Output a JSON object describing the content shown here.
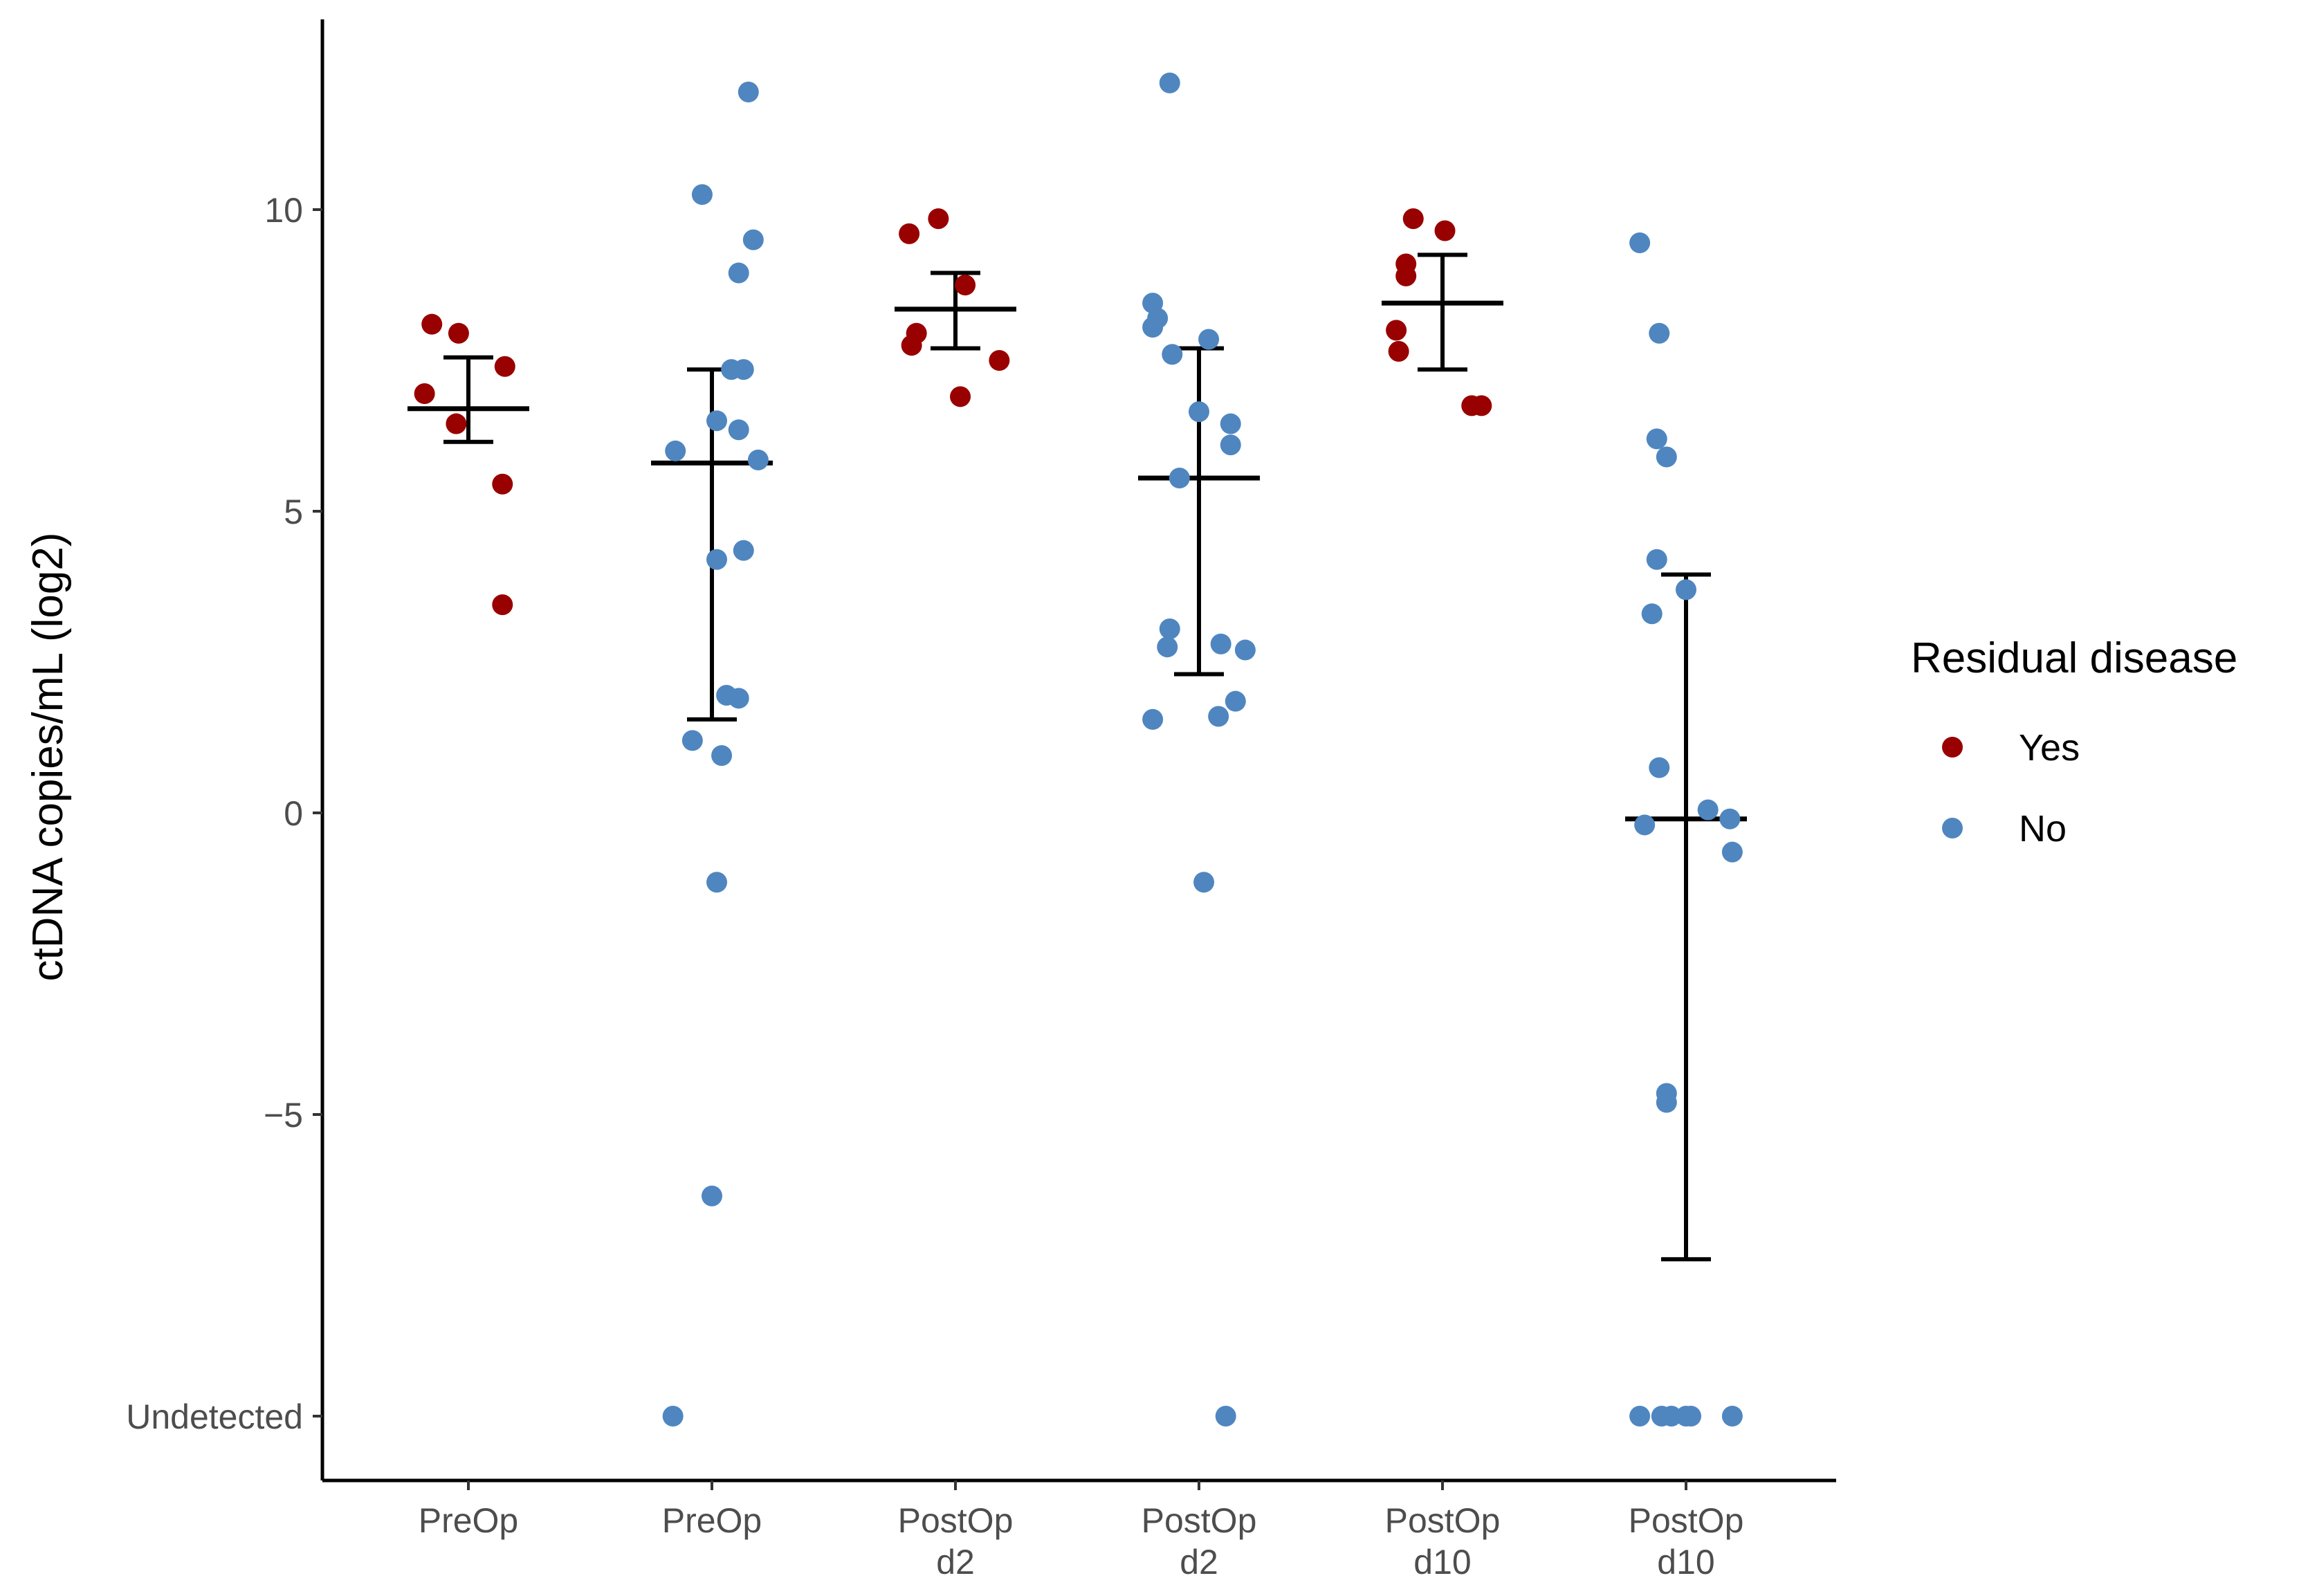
{
  "chart_data": {
    "type": "scatter",
    "title": "",
    "xlabel": "",
    "ylabel": "ctDNA copies/mL (log2)",
    "ylim": [
      -11.2,
      13.1
    ],
    "y_ticks": [
      {
        "value": 10,
        "label": "10"
      },
      {
        "value": 5,
        "label": "5"
      },
      {
        "value": 0,
        "label": "0"
      },
      {
        "value": -5,
        "label": "−5"
      },
      {
        "value": -10,
        "label": "Undetected"
      }
    ],
    "categories": [
      {
        "label": "PreOp",
        "group": "Yes"
      },
      {
        "label": "PreOp",
        "group": "No"
      },
      {
        "label": "PostOp d2",
        "group": "Yes"
      },
      {
        "label": "PostOp d2",
        "group": "No"
      },
      {
        "label": "PostOp d10",
        "group": "Yes"
      },
      {
        "label": "PostOp d10",
        "group": "No"
      }
    ],
    "legend": {
      "title": "Residual disease",
      "position": "right",
      "entries": [
        {
          "name": "Yes",
          "color": "#990000"
        },
        {
          "name": "No",
          "color": "#4f86c0"
        }
      ]
    },
    "series": [
      {
        "name": "Yes",
        "color": "#990000",
        "points": [
          {
            "cat": 0,
            "jitter": -0.15,
            "y": 8.1
          },
          {
            "cat": 0,
            "jitter": -0.04,
            "y": 7.95
          },
          {
            "cat": 0,
            "jitter": 0.15,
            "y": 7.4
          },
          {
            "cat": 0,
            "jitter": -0.18,
            "y": 6.95
          },
          {
            "cat": 0,
            "jitter": -0.05,
            "y": 6.45
          },
          {
            "cat": 0,
            "jitter": 0.14,
            "y": 5.45
          },
          {
            "cat": 0,
            "jitter": 0.14,
            "y": 3.45
          },
          {
            "cat": 2,
            "jitter": -0.19,
            "y": 9.6
          },
          {
            "cat": 2,
            "jitter": -0.07,
            "y": 9.85
          },
          {
            "cat": 2,
            "jitter": 0.04,
            "y": 8.75
          },
          {
            "cat": 2,
            "jitter": -0.16,
            "y": 7.95
          },
          {
            "cat": 2,
            "jitter": -0.18,
            "y": 7.75
          },
          {
            "cat": 2,
            "jitter": 0.18,
            "y": 7.5
          },
          {
            "cat": 2,
            "jitter": 0.02,
            "y": 6.9
          },
          {
            "cat": 4,
            "jitter": -0.12,
            "y": 9.85
          },
          {
            "cat": 4,
            "jitter": 0.01,
            "y": 9.65
          },
          {
            "cat": 4,
            "jitter": -0.15,
            "y": 9.1
          },
          {
            "cat": 4,
            "jitter": -0.15,
            "y": 8.9
          },
          {
            "cat": 4,
            "jitter": -0.19,
            "y": 8.0
          },
          {
            "cat": 4,
            "jitter": -0.18,
            "y": 7.65
          },
          {
            "cat": 4,
            "jitter": 0.12,
            "y": 6.75
          },
          {
            "cat": 4,
            "jitter": 0.16,
            "y": 6.75
          }
        ]
      },
      {
        "name": "No",
        "color": "#4f86c0",
        "points": [
          {
            "cat": 1,
            "jitter": 0.15,
            "y": 11.95
          },
          {
            "cat": 1,
            "jitter": -0.04,
            "y": 10.25
          },
          {
            "cat": 1,
            "jitter": 0.17,
            "y": 9.5
          },
          {
            "cat": 1,
            "jitter": 0.11,
            "y": 8.95
          },
          {
            "cat": 1,
            "jitter": 0.13,
            "y": 7.35
          },
          {
            "cat": 1,
            "jitter": 0.08,
            "y": 7.35
          },
          {
            "cat": 1,
            "jitter": 0.02,
            "y": 6.5
          },
          {
            "cat": 1,
            "jitter": 0.11,
            "y": 6.35
          },
          {
            "cat": 1,
            "jitter": -0.15,
            "y": 6.0
          },
          {
            "cat": 1,
            "jitter": 0.19,
            "y": 5.85
          },
          {
            "cat": 1,
            "jitter": 0.13,
            "y": 4.35
          },
          {
            "cat": 1,
            "jitter": 0.02,
            "y": 4.2
          },
          {
            "cat": 1,
            "jitter": 0.06,
            "y": 1.95
          },
          {
            "cat": 1,
            "jitter": 0.11,
            "y": 1.9
          },
          {
            "cat": 1,
            "jitter": -0.08,
            "y": 1.2
          },
          {
            "cat": 1,
            "jitter": 0.04,
            "y": 0.95
          },
          {
            "cat": 1,
            "jitter": 0.02,
            "y": -1.15
          },
          {
            "cat": 1,
            "jitter": 0.0,
            "y": -6.35
          },
          {
            "cat": 1,
            "jitter": -0.16,
            "y": -10
          },
          {
            "cat": 3,
            "jitter": -0.12,
            "y": 12.1
          },
          {
            "cat": 3,
            "jitter": -0.19,
            "y": 8.45
          },
          {
            "cat": 3,
            "jitter": -0.17,
            "y": 8.2
          },
          {
            "cat": 3,
            "jitter": -0.19,
            "y": 8.05
          },
          {
            "cat": 3,
            "jitter": 0.04,
            "y": 7.85
          },
          {
            "cat": 3,
            "jitter": -0.11,
            "y": 7.6
          },
          {
            "cat": 3,
            "jitter": 0.0,
            "y": 6.65
          },
          {
            "cat": 3,
            "jitter": 0.13,
            "y": 6.45
          },
          {
            "cat": 3,
            "jitter": 0.13,
            "y": 6.1
          },
          {
            "cat": 3,
            "jitter": -0.08,
            "y": 5.55
          },
          {
            "cat": 3,
            "jitter": -0.12,
            "y": 3.05
          },
          {
            "cat": 3,
            "jitter": -0.13,
            "y": 2.75
          },
          {
            "cat": 3,
            "jitter": 0.09,
            "y": 2.8
          },
          {
            "cat": 3,
            "jitter": 0.19,
            "y": 2.7
          },
          {
            "cat": 3,
            "jitter": 0.15,
            "y": 1.85
          },
          {
            "cat": 3,
            "jitter": -0.19,
            "y": 1.55
          },
          {
            "cat": 3,
            "jitter": 0.08,
            "y": 1.6
          },
          {
            "cat": 3,
            "jitter": 0.02,
            "y": -1.15
          },
          {
            "cat": 3,
            "jitter": 0.11,
            "y": -10
          },
          {
            "cat": 5,
            "jitter": -0.19,
            "y": 9.45
          },
          {
            "cat": 5,
            "jitter": -0.11,
            "y": 7.95
          },
          {
            "cat": 5,
            "jitter": -0.12,
            "y": 6.2
          },
          {
            "cat": 5,
            "jitter": -0.08,
            "y": 5.9
          },
          {
            "cat": 5,
            "jitter": -0.12,
            "y": 4.2
          },
          {
            "cat": 5,
            "jitter": -0.14,
            "y": 3.3
          },
          {
            "cat": 5,
            "jitter": 0.0,
            "y": 3.7
          },
          {
            "cat": 5,
            "jitter": -0.11,
            "y": 0.75
          },
          {
            "cat": 5,
            "jitter": 0.09,
            "y": 0.05
          },
          {
            "cat": 5,
            "jitter": -0.17,
            "y": -0.2
          },
          {
            "cat": 5,
            "jitter": 0.18,
            "y": -0.1
          },
          {
            "cat": 5,
            "jitter": 0.19,
            "y": -0.65
          },
          {
            "cat": 5,
            "jitter": -0.08,
            "y": -4.65
          },
          {
            "cat": 5,
            "jitter": -0.08,
            "y": -4.8
          },
          {
            "cat": 5,
            "jitter": -0.19,
            "y": -10
          },
          {
            "cat": 5,
            "jitter": -0.1,
            "y": -10
          },
          {
            "cat": 5,
            "jitter": -0.06,
            "y": -10
          },
          {
            "cat": 5,
            "jitter": 0.0,
            "y": -10
          },
          {
            "cat": 5,
            "jitter": 0.02,
            "y": -10
          },
          {
            "cat": 5,
            "jitter": 0.19,
            "y": -10
          }
        ]
      }
    ],
    "summaries": [
      {
        "cat": 0,
        "mean": 6.7,
        "lower": 6.15,
        "upper": 7.55
      },
      {
        "cat": 1,
        "mean": 5.8,
        "lower": 1.55,
        "upper": 7.35
      },
      {
        "cat": 2,
        "mean": 8.35,
        "lower": 7.7,
        "upper": 8.95
      },
      {
        "cat": 3,
        "mean": 5.55,
        "lower": 2.3,
        "upper": 7.7
      },
      {
        "cat": 4,
        "mean": 8.45,
        "lower": 7.35,
        "upper": 9.25
      },
      {
        "cat": 5,
        "mean": -0.1,
        "lower": -7.4,
        "upper": 3.95
      }
    ],
    "grid": false
  }
}
